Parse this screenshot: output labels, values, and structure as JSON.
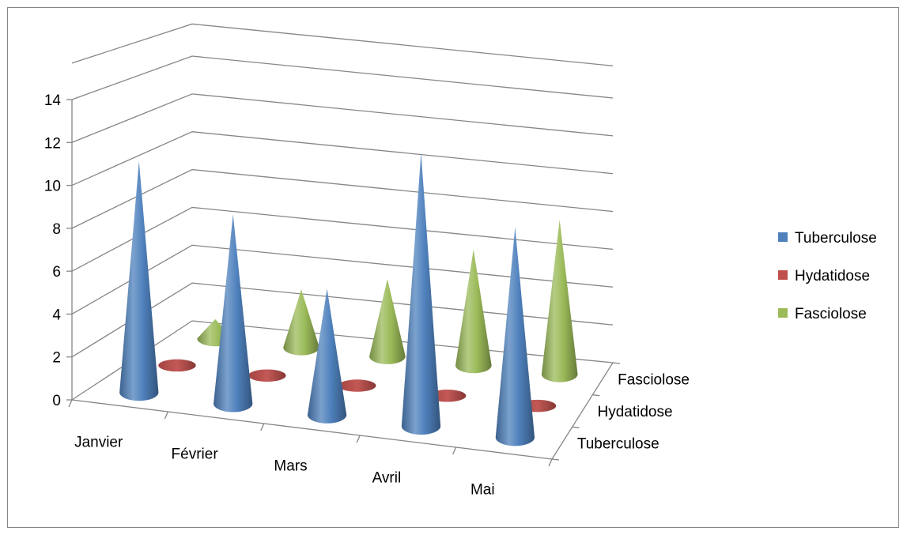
{
  "chart_data": {
    "type": "bar",
    "subtype": "3d-cone",
    "title": "",
    "xlabel": "",
    "ylabel": "",
    "categories": [
      "Janvier",
      "Février",
      "Mars",
      "Avril",
      "Mai"
    ],
    "y_ticks": [
      "0",
      "2",
      "4",
      "6",
      "8",
      "10",
      "12",
      "14"
    ],
    "ylim": [
      0,
      14
    ],
    "grid": true,
    "legend_position": "right",
    "series": [
      {
        "name": "Tuberculose",
        "color": "#4F81BD",
        "values": [
          11,
          9,
          6,
          13,
          10
        ]
      },
      {
        "name": "Hydatidose",
        "color": "#C0504D",
        "values": [
          0,
          0,
          0,
          0,
          0
        ]
      },
      {
        "name": "Fasciolose",
        "color": "#9BBB59",
        "values": [
          1,
          3,
          4,
          6,
          8
        ]
      }
    ],
    "depth_labels": [
      "Tuberculose",
      "Hydatidose",
      "Fasciolose"
    ]
  }
}
